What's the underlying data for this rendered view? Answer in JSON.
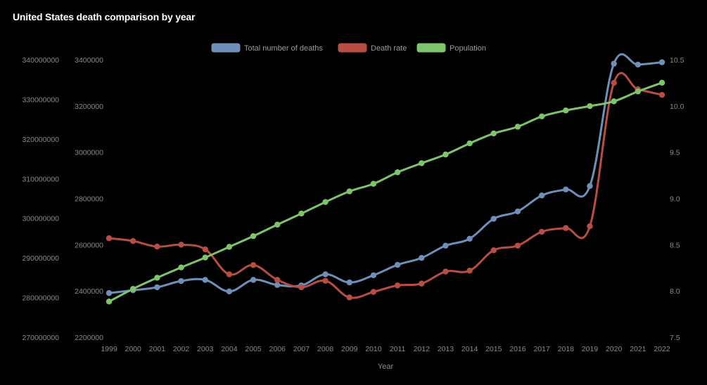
{
  "page": {
    "title": "United States death comparison by year"
  },
  "chart_data": {
    "type": "line",
    "title": "United States death comparison by year",
    "xlabel": "Year",
    "categories": [
      "1999",
      "2000",
      "2001",
      "2002",
      "2003",
      "2004",
      "2005",
      "2006",
      "2007",
      "2008",
      "2009",
      "2010",
      "2011",
      "2012",
      "2013",
      "2014",
      "2015",
      "2016",
      "2017",
      "2018",
      "2019",
      "2020",
      "2021",
      "2022"
    ],
    "legend_position": "top-center",
    "grid": false,
    "axes": {
      "left_outer": {
        "ticks": [
          "270000000",
          "280000000",
          "290000000",
          "300000000",
          "310000000",
          "320000000",
          "330000000",
          "340000000"
        ],
        "range": [
          270000000,
          340000000
        ],
        "series": "Population"
      },
      "left_inner": {
        "ticks": [
          "2200000",
          "2400000",
          "2600000",
          "2800000",
          "3000000",
          "3200000",
          "3400000"
        ],
        "range": [
          2200000,
          3400000
        ],
        "series": "Total number of deaths"
      },
      "right": {
        "ticks": [
          "7.5",
          "8.0",
          "8.5",
          "9.0",
          "9.5",
          "10.0",
          "10.5"
        ],
        "range": [
          7.5,
          10.5
        ],
        "series": "Death rate"
      }
    },
    "series": [
      {
        "name": "Total number of deaths",
        "axis": "left_inner",
        "color": "#6f8fb8",
        "values": [
          2391000,
          2403000,
          2416000,
          2443000,
          2448000,
          2398000,
          2448000,
          2426000,
          2424000,
          2472000,
          2437000,
          2468000,
          2513000,
          2543000,
          2596000,
          2626000,
          2712000,
          2744000,
          2813000,
          2839000,
          2854000,
          3383000,
          3379000,
          3389000
        ]
      },
      {
        "name": "Death rate",
        "axis": "right",
        "color": "#b84d43",
        "values": [
          8.57,
          8.54,
          8.48,
          8.5,
          8.45,
          8.18,
          8.28,
          8.12,
          8.04,
          8.11,
          7.93,
          7.99,
          8.06,
          8.08,
          8.21,
          8.22,
          8.44,
          8.49,
          8.64,
          8.68,
          8.7,
          10.25,
          10.18,
          10.12
        ]
      },
      {
        "name": "Population",
        "axis": "left_outer",
        "color": "#7ec46a",
        "values": [
          279000000,
          282200000,
          285000000,
          287600000,
          290100000,
          292800000,
          295500000,
          298400000,
          301200000,
          304100000,
          306800000,
          308700000,
          311600000,
          313900000,
          316100000,
          318900000,
          321400000,
          323100000,
          325700000,
          327200000,
          328300000,
          329500000,
          332000000,
          334200000
        ]
      }
    ]
  },
  "colors": {
    "background": "#000000",
    "text": "#8a8a8a",
    "title": "#ffffff"
  }
}
